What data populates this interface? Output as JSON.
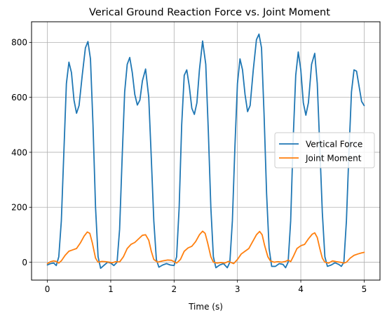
{
  "chart_data": {
    "type": "line",
    "title": "Verical Ground Reaction Force vs. Joint Moment",
    "xlabel": "Time (s)",
    "ylabel": "",
    "xlim": [
      -0.25,
      5.25
    ],
    "ylim": [
      -65,
      875
    ],
    "x_ticks": [
      0,
      1,
      2,
      3,
      4,
      5
    ],
    "y_ticks": [
      0,
      200,
      400,
      600,
      800
    ],
    "grid": true,
    "legend": {
      "placement": "center-right",
      "entries": [
        "Vertical Force",
        "Joint Moment"
      ]
    },
    "series": [
      {
        "name": "Vertical Force",
        "color": "#1f77b4",
        "points": [
          [
            0.0,
            -10
          ],
          [
            0.05,
            -5
          ],
          [
            0.1,
            -3
          ],
          [
            0.14,
            -12
          ],
          [
            0.18,
            20
          ],
          [
            0.22,
            150
          ],
          [
            0.26,
            400
          ],
          [
            0.3,
            650
          ],
          [
            0.34,
            728
          ],
          [
            0.38,
            690
          ],
          [
            0.42,
            590
          ],
          [
            0.46,
            542
          ],
          [
            0.5,
            570
          ],
          [
            0.55,
            680
          ],
          [
            0.6,
            780
          ],
          [
            0.64,
            803
          ],
          [
            0.68,
            740
          ],
          [
            0.72,
            500
          ],
          [
            0.76,
            200
          ],
          [
            0.8,
            20
          ],
          [
            0.84,
            -22
          ],
          [
            0.9,
            -10
          ],
          [
            0.95,
            0
          ],
          [
            1.0,
            -3
          ],
          [
            1.05,
            -12
          ],
          [
            1.1,
            0
          ],
          [
            1.14,
            120
          ],
          [
            1.18,
            380
          ],
          [
            1.22,
            620
          ],
          [
            1.26,
            720
          ],
          [
            1.3,
            745
          ],
          [
            1.34,
            690
          ],
          [
            1.38,
            610
          ],
          [
            1.42,
            572
          ],
          [
            1.46,
            590
          ],
          [
            1.5,
            660
          ],
          [
            1.55,
            703
          ],
          [
            1.6,
            600
          ],
          [
            1.64,
            380
          ],
          [
            1.68,
            150
          ],
          [
            1.72,
            10
          ],
          [
            1.76,
            -18
          ],
          [
            1.82,
            -10
          ],
          [
            1.88,
            -5
          ],
          [
            1.94,
            -10
          ],
          [
            2.0,
            -12
          ],
          [
            2.04,
            20
          ],
          [
            2.08,
            200
          ],
          [
            2.12,
            500
          ],
          [
            2.16,
            680
          ],
          [
            2.2,
            700
          ],
          [
            2.24,
            640
          ],
          [
            2.28,
            560
          ],
          [
            2.32,
            538
          ],
          [
            2.36,
            580
          ],
          [
            2.4,
            700
          ],
          [
            2.45,
            805
          ],
          [
            2.5,
            720
          ],
          [
            2.54,
            480
          ],
          [
            2.58,
            200
          ],
          [
            2.62,
            20
          ],
          [
            2.66,
            -20
          ],
          [
            2.72,
            -10
          ],
          [
            2.78,
            -5
          ],
          [
            2.84,
            -20
          ],
          [
            2.88,
            0
          ],
          [
            2.92,
            150
          ],
          [
            2.96,
            420
          ],
          [
            3.0,
            650
          ],
          [
            3.04,
            740
          ],
          [
            3.08,
            700
          ],
          [
            3.12,
            610
          ],
          [
            3.16,
            548
          ],
          [
            3.2,
            570
          ],
          [
            3.25,
            700
          ],
          [
            3.3,
            810
          ],
          [
            3.34,
            830
          ],
          [
            3.38,
            780
          ],
          [
            3.42,
            540
          ],
          [
            3.46,
            250
          ],
          [
            3.5,
            50
          ],
          [
            3.54,
            -15
          ],
          [
            3.6,
            -15
          ],
          [
            3.66,
            -5
          ],
          [
            3.72,
            -8
          ],
          [
            3.76,
            -20
          ],
          [
            3.8,
            0
          ],
          [
            3.84,
            150
          ],
          [
            3.88,
            450
          ],
          [
            3.92,
            680
          ],
          [
            3.96,
            765
          ],
          [
            4.0,
            700
          ],
          [
            4.04,
            580
          ],
          [
            4.08,
            535
          ],
          [
            4.12,
            580
          ],
          [
            4.17,
            720
          ],
          [
            4.22,
            760
          ],
          [
            4.26,
            650
          ],
          [
            4.3,
            420
          ],
          [
            4.34,
            180
          ],
          [
            4.38,
            20
          ],
          [
            4.42,
            -15
          ],
          [
            4.48,
            -10
          ],
          [
            4.54,
            -2
          ],
          [
            4.6,
            -8
          ],
          [
            4.64,
            -15
          ],
          [
            4.68,
            0
          ],
          [
            4.72,
            150
          ],
          [
            4.76,
            400
          ],
          [
            4.8,
            620
          ],
          [
            4.84,
            700
          ],
          [
            4.88,
            695
          ],
          [
            4.92,
            640
          ],
          [
            4.96,
            585
          ],
          [
            5.0,
            570
          ]
        ]
      },
      {
        "name": "Joint Moment",
        "color": "#ff7f0e",
        "points": [
          [
            0.0,
            -5
          ],
          [
            0.05,
            2
          ],
          [
            0.1,
            5
          ],
          [
            0.14,
            3
          ],
          [
            0.18,
            -3
          ],
          [
            0.22,
            5
          ],
          [
            0.28,
            25
          ],
          [
            0.34,
            40
          ],
          [
            0.4,
            45
          ],
          [
            0.46,
            50
          ],
          [
            0.52,
            70
          ],
          [
            0.58,
            95
          ],
          [
            0.63,
            110
          ],
          [
            0.67,
            105
          ],
          [
            0.71,
            70
          ],
          [
            0.76,
            15
          ],
          [
            0.8,
            0
          ],
          [
            0.86,
            3
          ],
          [
            0.92,
            2
          ],
          [
            0.98,
            0
          ],
          [
            1.02,
            -2
          ],
          [
            1.08,
            2
          ],
          [
            1.14,
            1
          ],
          [
            1.2,
            20
          ],
          [
            1.26,
            50
          ],
          [
            1.32,
            65
          ],
          [
            1.38,
            72
          ],
          [
            1.44,
            85
          ],
          [
            1.5,
            98
          ],
          [
            1.55,
            100
          ],
          [
            1.6,
            80
          ],
          [
            1.64,
            40
          ],
          [
            1.68,
            10
          ],
          [
            1.74,
            0
          ],
          [
            1.82,
            5
          ],
          [
            1.9,
            8
          ],
          [
            1.96,
            7
          ],
          [
            2.0,
            2
          ],
          [
            2.04,
            -3
          ],
          [
            2.1,
            10
          ],
          [
            2.16,
            40
          ],
          [
            2.22,
            52
          ],
          [
            2.28,
            58
          ],
          [
            2.34,
            75
          ],
          [
            2.4,
            100
          ],
          [
            2.45,
            113
          ],
          [
            2.49,
            105
          ],
          [
            2.53,
            70
          ],
          [
            2.58,
            20
          ],
          [
            2.62,
            0
          ],
          [
            2.68,
            -3
          ],
          [
            2.74,
            -1
          ],
          [
            2.8,
            -3
          ],
          [
            2.86,
            3
          ],
          [
            2.9,
            -1
          ],
          [
            2.94,
            -5
          ],
          [
            3.0,
            10
          ],
          [
            3.06,
            30
          ],
          [
            3.12,
            40
          ],
          [
            3.18,
            50
          ],
          [
            3.24,
            75
          ],
          [
            3.3,
            100
          ],
          [
            3.35,
            112
          ],
          [
            3.39,
            100
          ],
          [
            3.43,
            60
          ],
          [
            3.48,
            20
          ],
          [
            3.52,
            5
          ],
          [
            3.58,
            0
          ],
          [
            3.64,
            2
          ],
          [
            3.7,
            0
          ],
          [
            3.76,
            3
          ],
          [
            3.8,
            8
          ],
          [
            3.84,
            2
          ],
          [
            3.88,
            20
          ],
          [
            3.94,
            50
          ],
          [
            4.0,
            60
          ],
          [
            4.06,
            65
          ],
          [
            4.12,
            85
          ],
          [
            4.18,
            102
          ],
          [
            4.22,
            107
          ],
          [
            4.26,
            90
          ],
          [
            4.3,
            50
          ],
          [
            4.34,
            15
          ],
          [
            4.38,
            0
          ],
          [
            4.44,
            -3
          ],
          [
            4.5,
            5
          ],
          [
            4.56,
            2
          ],
          [
            4.62,
            0
          ],
          [
            4.68,
            -3
          ],
          [
            4.72,
            0
          ],
          [
            4.78,
            15
          ],
          [
            4.84,
            25
          ],
          [
            4.9,
            30
          ],
          [
            4.96,
            34
          ],
          [
            5.0,
            36
          ]
        ]
      }
    ]
  }
}
